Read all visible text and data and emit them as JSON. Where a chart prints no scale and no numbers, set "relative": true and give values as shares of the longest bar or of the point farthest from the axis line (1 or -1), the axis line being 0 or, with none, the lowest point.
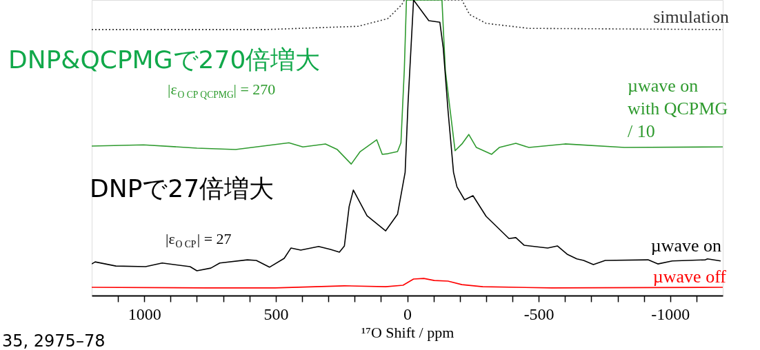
{
  "chart_data": {
    "type": "line",
    "relative": true,
    "xlabel": "¹⁷O Shift / ppm",
    "xlim": [
      1200,
      -1200
    ],
    "xticks": [
      {
        "value": 1100,
        "label": null
      },
      1000,
      {
        "value": 900,
        "label": null
      },
      {
        "value": 800,
        "label": null
      },
      {
        "value": 700,
        "label": null
      },
      {
        "value": 600,
        "label": null
      },
      500,
      {
        "value": 400,
        "label": null
      },
      {
        "value": 300,
        "label": null
      },
      {
        "value": 200,
        "label": null
      },
      {
        "value": 100,
        "label": null
      },
      0,
      {
        "value": -100,
        "label": null
      },
      {
        "value": -200,
        "label": null
      },
      {
        "value": -300,
        "label": null
      },
      {
        "value": -400,
        "label": null
      },
      -500,
      {
        "value": -600,
        "label": null
      },
      {
        "value": -700,
        "label": null
      },
      {
        "value": -800,
        "label": null
      },
      {
        "value": -900,
        "label": null
      },
      -1000,
      {
        "value": -1100,
        "label": null
      }
    ],
    "grid": false,
    "marker": "none",
    "series": [
      {
        "name": "simulation",
        "color": "#333333",
        "line_style": "dotted",
        "x": [
          1200,
          537,
          187,
          74,
          21,
          11,
          -208,
          -237,
          -300,
          -463,
          -1200
        ],
        "values": [
          0.9,
          0.9,
          0.911,
          0.937,
          0.984,
          1,
          1,
          0.951,
          0.921,
          0.904,
          0.9
        ]
      },
      {
        "name": "µwave on\nwith QCPMG\n/ 10",
        "color": "#2e9a2e",
        "line_style": "solid",
        "x": [
          1200,
          1003,
          800,
          653,
          450,
          397,
          311,
          266,
          213,
          179,
          116,
          95,
          74,
          37,
          24,
          11,
          3,
          -132,
          -145,
          -182,
          -208,
          -234,
          -263,
          -321,
          -350,
          -413,
          -463,
          -600,
          -826,
          -1200
        ],
        "values": [
          0.506,
          0.51,
          0.499,
          0.494,
          0.517,
          0.503,
          0.513,
          0.494,
          0.445,
          0.487,
          0.527,
          0.478,
          0.48,
          0.487,
          0.517,
          0.767,
          1,
          1,
          0.76,
          0.49,
          0.513,
          0.545,
          0.501,
          0.478,
          0.501,
          0.515,
          0.501,
          0.513,
          0.501,
          0.503
        ]
      },
      {
        "name": "µwave on",
        "color": "#000000",
        "line_style": "solid",
        "x": [
          1200,
          1187,
          1108,
          995,
          932,
          826,
          800,
          747,
          713,
          608,
          574,
          524,
          468,
          442,
          405,
          337,
          292,
          258,
          239,
          221,
          205,
          153,
          82,
          37,
          16,
          8,
          -3,
          -24,
          -82,
          -124,
          -137,
          -155,
          -176,
          -189,
          -218,
          -250,
          -300,
          -387,
          -413,
          -445,
          -534,
          -571,
          -608,
          -645,
          -671,
          -708,
          -753,
          -916,
          -953,
          -1008,
          -1134,
          -1142,
          -1192
        ],
        "values": [
          0.107,
          0.114,
          0.1,
          0.098,
          0.11,
          0.098,
          0.084,
          0.093,
          0.11,
          0.121,
          0.119,
          0.096,
          0.126,
          0.161,
          0.154,
          0.166,
          0.156,
          0.147,
          0.168,
          0.301,
          0.357,
          0.27,
          0.219,
          0.275,
          0.378,
          0.417,
          0.65,
          1,
          0.93,
          0.925,
          0.837,
          0.627,
          0.417,
          0.368,
          0.324,
          0.338,
          0.268,
          0.193,
          0.196,
          0.17,
          0.161,
          0.168,
          0.14,
          0.124,
          0.119,
          0.105,
          0.119,
          0.121,
          0.107,
          0.117,
          0.121,
          0.124,
          0.117
        ]
      },
      {
        "name": "µwave off",
        "color": "#ff0000",
        "line_style": "solid",
        "x": [
          1200,
          766,
          503,
          239,
          82,
          16,
          -24,
          -63,
          -103,
          -155,
          -208,
          -287,
          -550,
          -1200
        ],
        "values": [
          0.028,
          0.026,
          0.026,
          0.033,
          0.03,
          0.035,
          0.056,
          0.058,
          0.051,
          0.049,
          0.037,
          0.03,
          0.026,
          0.028
        ]
      }
    ],
    "annotations": [
      "DNP&QCPMGで270倍増大",
      "|ε$_{O CP QCPMG}$| = 270",
      "DNPで27倍増大",
      "|ε$_{O CP}$| = 27",
      "35, 2975–78"
    ]
  }
}
